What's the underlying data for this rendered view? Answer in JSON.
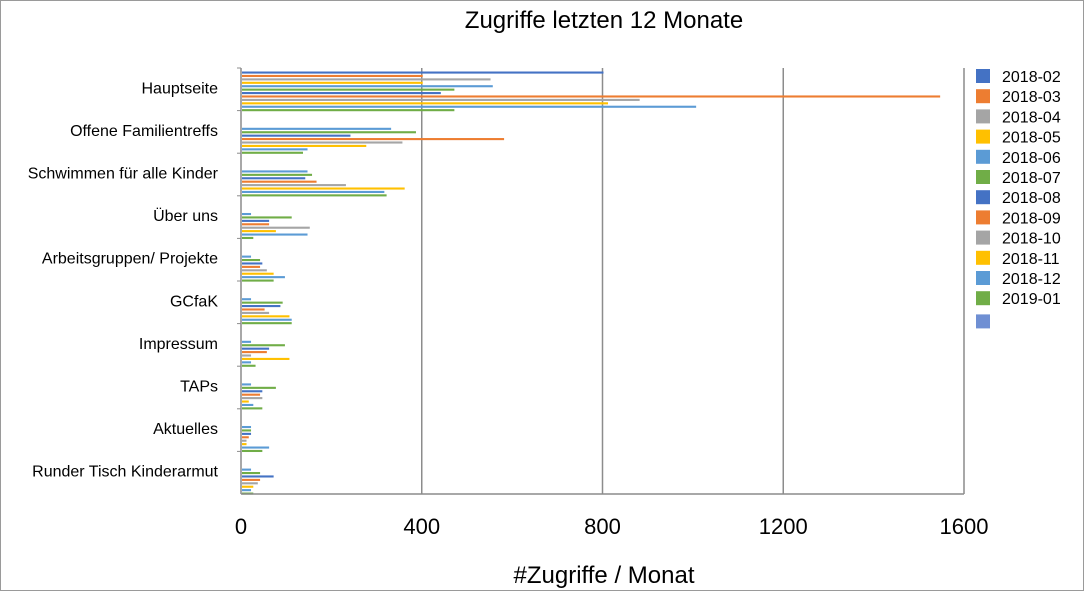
{
  "chart_data": {
    "type": "bar",
    "orientation": "horizontal",
    "title": "Zugriffe letzten 12 Monate",
    "xlabel": "#Zugriffe / Monat",
    "ylabel": "",
    "xlim": [
      0,
      1600
    ],
    "xticks": [
      "0",
      "400",
      "800",
      "1200",
      "1600"
    ],
    "grid": true,
    "legend_position": "right",
    "categories": [
      "Hauptseite",
      "Offene Familientreffs",
      "Schwimmen für alle Kinder",
      "Über uns",
      "Arbeitsgruppen/ Projekte",
      "GCfaK",
      "Impressum",
      "TAPs",
      "Aktuelles",
      "Runder Tisch Kinderarmut"
    ],
    "series": [
      {
        "name": "2018-02",
        "color": "#4472C4",
        "values": [
          800,
          0,
          0,
          0,
          0,
          0,
          0,
          0,
          0,
          0
        ]
      },
      {
        "name": "2018-03",
        "color": "#ED7D31",
        "values": [
          400,
          0,
          0,
          0,
          0,
          0,
          0,
          0,
          0,
          0
        ]
      },
      {
        "name": "2018-04",
        "color": "#A5A5A5",
        "values": [
          550,
          0,
          0,
          0,
          0,
          0,
          0,
          0,
          0,
          0
        ]
      },
      {
        "name": "2018-05",
        "color": "#FFC000",
        "values": [
          400,
          0,
          0,
          0,
          0,
          0,
          0,
          0,
          0,
          0
        ]
      },
      {
        "name": "2018-06",
        "color": "#5B9BD5",
        "values": [
          555,
          330,
          145,
          20,
          20,
          20,
          20,
          20,
          20,
          20
        ]
      },
      {
        "name": "2018-07",
        "color": "#70AD47",
        "values": [
          470,
          385,
          155,
          110,
          40,
          90,
          95,
          75,
          20,
          40
        ]
      },
      {
        "name": "2018-08",
        "color": "#4472C4",
        "values": [
          440,
          240,
          140,
          60,
          45,
          85,
          60,
          45,
          20,
          70
        ]
      },
      {
        "name": "2018-09",
        "color": "#ED7D31",
        "values": [
          1545,
          580,
          165,
          60,
          40,
          50,
          55,
          40,
          15,
          40
        ]
      },
      {
        "name": "2018-10",
        "color": "#A5A5A5",
        "values": [
          880,
          355,
          230,
          150,
          55,
          60,
          20,
          45,
          10,
          35
        ]
      },
      {
        "name": "2018-11",
        "color": "#FFC000",
        "values": [
          810,
          275,
          360,
          75,
          70,
          105,
          105,
          15,
          10,
          25
        ]
      },
      {
        "name": "2018-12",
        "color": "#5B9BD5",
        "values": [
          1005,
          145,
          315,
          145,
          95,
          110,
          20,
          25,
          60,
          20
        ]
      },
      {
        "name": "2019-01",
        "color": "#70AD47",
        "values": [
          470,
          135,
          320,
          25,
          70,
          110,
          30,
          45,
          45,
          25
        ]
      }
    ],
    "extra_legend_entry": {
      "name": "",
      "color": "#6F8FD3"
    }
  }
}
